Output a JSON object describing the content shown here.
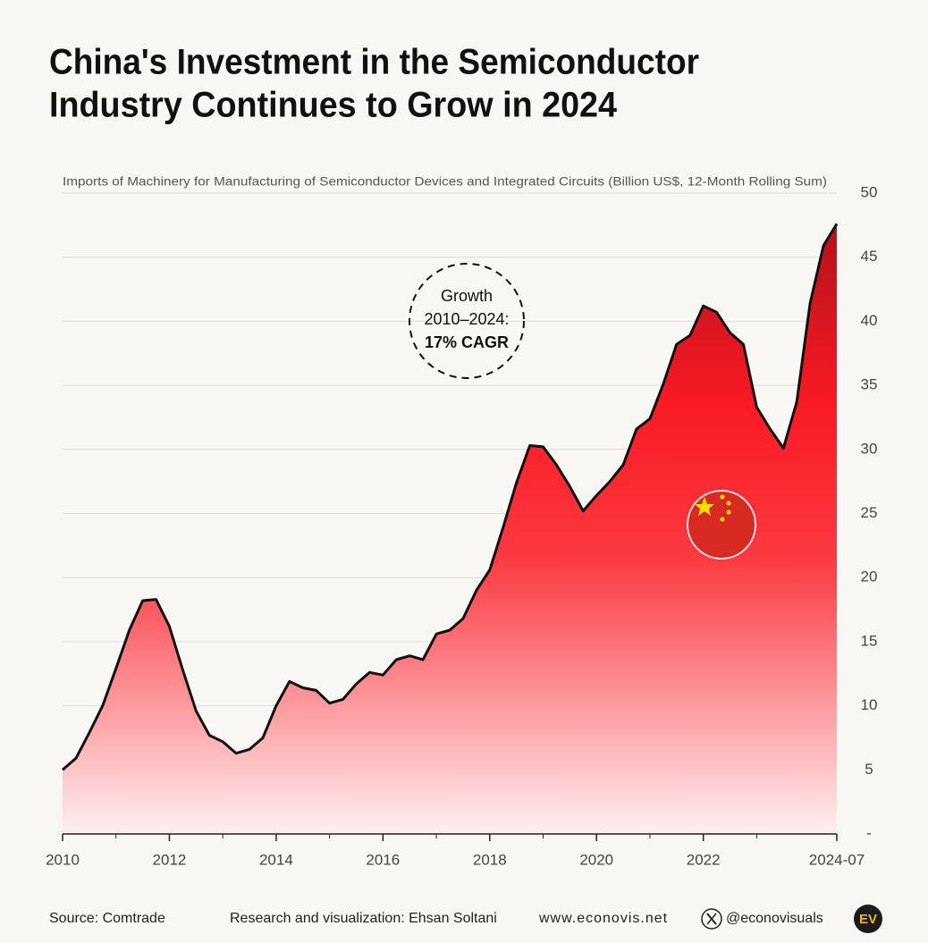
{
  "chart_data": {
    "type": "area",
    "title": [
      "China's Investment in the Semiconductor",
      "Industry Continues to Grow in 2024"
    ],
    "subtitle": "Imports of Machinery for Manufacturing of Semiconductor Devices and Integrated Circuits (Billion US$, 12-Month Rolling Sum)",
    "annotation": [
      "Growth",
      "2010–2024:",
      "17% CAGR"
    ],
    "x": [
      "2010-01",
      "2010-04",
      "2010-07",
      "2010-10",
      "2011-01",
      "2011-04",
      "2011-07",
      "2011-10",
      "2012-01",
      "2012-04",
      "2012-07",
      "2012-10",
      "2013-01",
      "2013-04",
      "2013-07",
      "2013-10",
      "2014-01",
      "2014-04",
      "2014-07",
      "2014-10",
      "2015-01",
      "2015-04",
      "2015-07",
      "2015-10",
      "2016-01",
      "2016-04",
      "2016-07",
      "2016-10",
      "2017-01",
      "2017-04",
      "2017-07",
      "2017-10",
      "2018-01",
      "2018-04",
      "2018-07",
      "2018-10",
      "2019-01",
      "2019-04",
      "2019-07",
      "2019-10",
      "2020-01",
      "2020-04",
      "2020-07",
      "2020-10",
      "2021-01",
      "2021-04",
      "2021-07",
      "2021-10",
      "2022-01",
      "2022-04",
      "2022-07",
      "2022-10",
      "2023-01",
      "2023-04",
      "2023-07",
      "2023-10",
      "2024-01",
      "2024-04",
      "2024-07"
    ],
    "series": [
      {
        "name": "Imports",
        "color": "#111111",
        "values": [
          5.0,
          5.9,
          7.9,
          10.0,
          12.9,
          15.9,
          18.2,
          18.3,
          16.2,
          12.8,
          9.6,
          7.7,
          7.2,
          6.3,
          6.6,
          7.5,
          10.0,
          11.9,
          11.4,
          11.2,
          10.2,
          10.5,
          11.7,
          12.6,
          12.4,
          13.6,
          13.9,
          13.6,
          15.6,
          15.9,
          16.8,
          19.0,
          20.6,
          23.9,
          27.4,
          30.3,
          30.2,
          28.8,
          27.1,
          25.2,
          26.4,
          27.5,
          28.8,
          31.6,
          32.4,
          35.1,
          38.2,
          38.9,
          41.2,
          40.7,
          39.1,
          38.2,
          33.3,
          31.6,
          30.1,
          33.7,
          41.4,
          45.9,
          47.6
        ]
      }
    ],
    "xlim": [
      "2010-01",
      "2024-07"
    ],
    "xticks": [
      {
        "value": "2010-01",
        "label": "2010"
      },
      {
        "value": "2012-01",
        "label": "2012"
      },
      {
        "value": "2014-01",
        "label": "2014"
      },
      {
        "value": "2016-01",
        "label": "2016"
      },
      {
        "value": "2018-01",
        "label": "2018"
      },
      {
        "value": "2020-01",
        "label": "2020"
      },
      {
        "value": "2022-01",
        "label": "2022"
      },
      {
        "value": "2024-07",
        "label": "2024-07"
      }
    ],
    "xminorticks": [
      "2011-01",
      "2013-01",
      "2015-01",
      "2017-01",
      "2019-01",
      "2021-01",
      "2023-01"
    ],
    "ylim": [
      0,
      50
    ],
    "yticks": [
      {
        "value": 0,
        "label": "-"
      },
      5,
      10,
      15,
      20,
      25,
      30,
      35,
      40,
      45,
      50
    ],
    "grid": true,
    "footer": {
      "source": "Source: Comtrade",
      "credit": "Research and visualization: Ehsan Soltani",
      "website": "www.econovis.net",
      "handle": "@econovisuals",
      "logo": "EV"
    }
  }
}
